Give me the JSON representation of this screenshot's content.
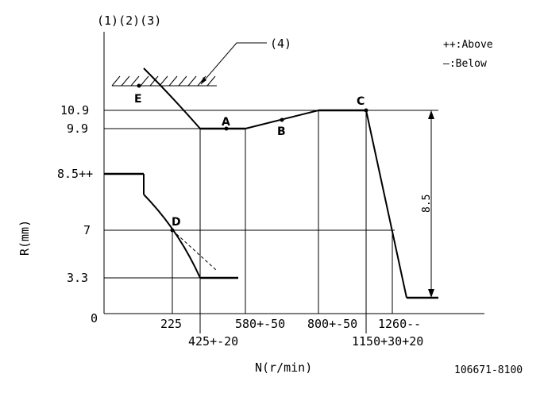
{
  "header": {
    "ref_numbers": "(1)(2)(3)",
    "stopper_ref": "(4)"
  },
  "legend": {
    "above": "++:Above",
    "below": "—:Below"
  },
  "axes": {
    "y_label": "R(mm)",
    "x_label": "N(r/min)",
    "origin": "0"
  },
  "y_ticks": {
    "t109": "10.9",
    "t99": "9.9",
    "t85": "8.5++",
    "t7": "7",
    "t33": "3.3"
  },
  "x_ticks": {
    "t225": "225",
    "t425": "425+-20",
    "t580": "580+-50",
    "t800": "800+-50",
    "t1150": "1150+30+20",
    "t1260": "1260--"
  },
  "points": {
    "a": "A",
    "b": "B",
    "c": "C",
    "d": "D",
    "e": "E"
  },
  "dimension": {
    "stroke_label": "8.5"
  },
  "footer": {
    "part_number": "106671-8100"
  }
}
